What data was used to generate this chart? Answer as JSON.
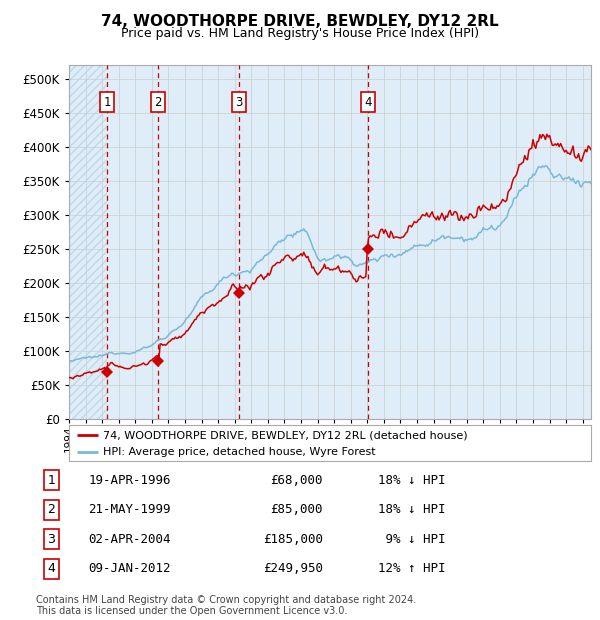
{
  "title": "74, WOODTHORPE DRIVE, BEWDLEY, DY12 2RL",
  "subtitle": "Price paid vs. HM Land Registry's House Price Index (HPI)",
  "legend_line1": "74, WOODTHORPE DRIVE, BEWDLEY, DY12 2RL (detached house)",
  "legend_line2": "HPI: Average price, detached house, Wyre Forest",
  "footer1": "Contains HM Land Registry data © Crown copyright and database right 2024.",
  "footer2": "This data is licensed under the Open Government Licence v3.0.",
  "transactions": [
    {
      "num": 1,
      "date": "19-APR-1996",
      "year": 1996.29,
      "price": 68000,
      "pct": "18%",
      "dir": "↓"
    },
    {
      "num": 2,
      "date": "21-MAY-1999",
      "year": 1999.38,
      "price": 85000,
      "pct": "18%",
      "dir": "↓"
    },
    {
      "num": 3,
      "date": "02-APR-2004",
      "year": 2004.25,
      "price": 185000,
      "pct": "9%",
      "dir": "↓"
    },
    {
      "num": 4,
      "date": "09-JAN-2012",
      "year": 2012.03,
      "price": 249950,
      "pct": "12%",
      "dir": "↑"
    }
  ],
  "hpi_color": "#7ab8d9",
  "price_color": "#cc0000",
  "dashed_color": "#cc0000",
  "shaded_color": "#deedf7",
  "background_color": "#ffffff",
  "grid_color": "#cccccc",
  "ylim": [
    0,
    520000
  ],
  "xlim_start": 1994.0,
  "xlim_end": 2025.5,
  "yticks": [
    0,
    50000,
    100000,
    150000,
    200000,
    250000,
    300000,
    350000,
    400000,
    450000,
    500000
  ]
}
